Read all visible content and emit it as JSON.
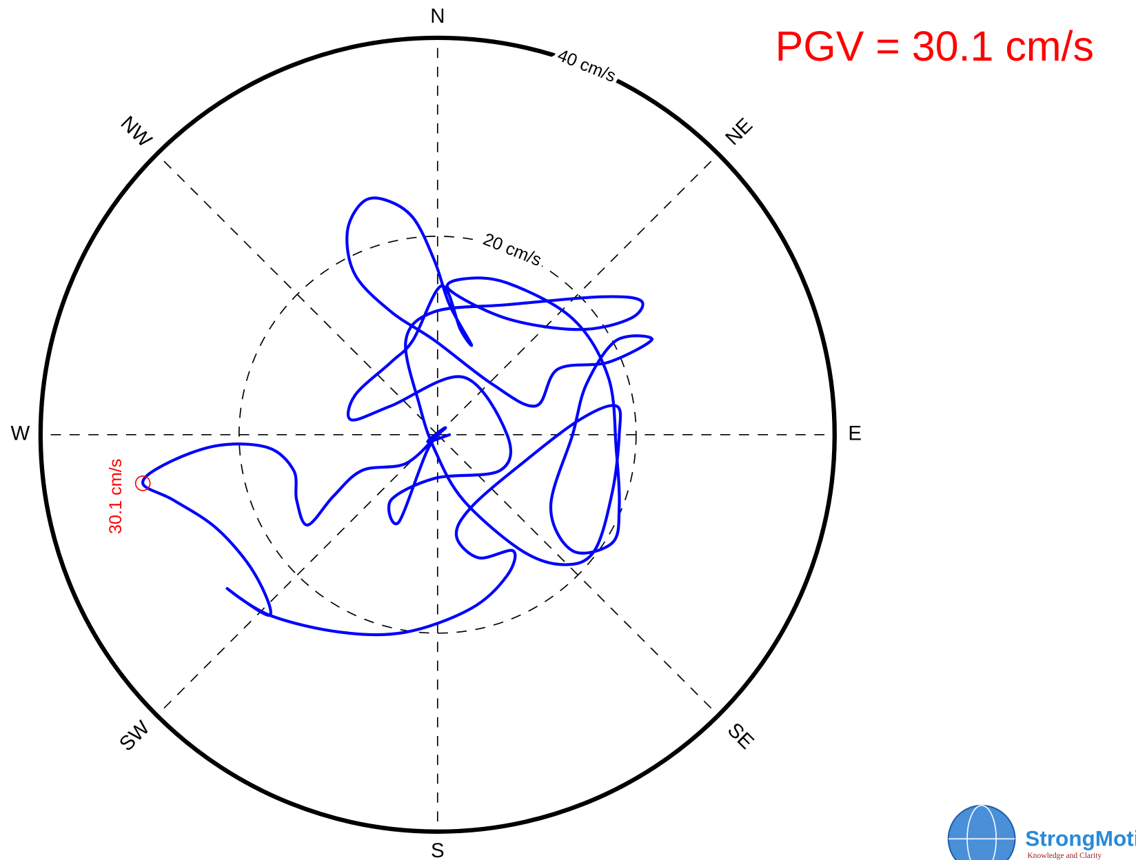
{
  "chart_data": {
    "type": "particle_motion",
    "annotation": "PGV = 30.1 cm/s",
    "directions": [
      "N",
      "NE",
      "E",
      "SE",
      "S",
      "SW",
      "W",
      "NW"
    ],
    "rlim": [
      0,
      40
    ],
    "rticks": [
      {
        "value": 20,
        "label": "20 cm/s"
      },
      {
        "value": 40,
        "label": "40 cm/s"
      }
    ],
    "color": "#0000ff",
    "x": [
      0,
      -3.2,
      -7.6,
      -10.5,
      -13.1,
      -14.2,
      -14.5,
      -17.1,
      -22.2,
      -27.3,
      -29.7,
      -26.6,
      -22.2,
      -18.5,
      -16.9,
      -21.2,
      -16.9,
      -9.8,
      -3.2,
      3.4,
      7.0,
      7.6,
      4.1,
      1.9,
      3.4,
      8.5,
      14.3,
      18.0,
      18.3,
      17.6,
      15.8,
      12.8,
      8.5,
      2.6,
      -0.3,
      -1.8,
      -3.2,
      -0.3,
      7.0,
      16.5,
      20.5,
      19.4,
      14.3,
      7.0,
      1.2,
      2.6,
      7.0,
      13.6,
      17.2,
      18.0,
      18.3,
      17.6,
      13.6,
      11.4,
      13.6,
      15.0,
      18.0,
      21.6,
      17.2,
      12.1,
      9.9,
      5.5,
      -0.3,
      -4.7,
      -8.3,
      -9.1,
      -7.6,
      -5.4,
      -2.5,
      -0.3,
      1.2,
      3.4,
      2.3,
      0.4,
      -2.5,
      -4.7,
      -8.3,
      -8.7,
      -4.7,
      2.6,
      7.0,
      6.3,
      -0.3,
      -4.7,
      -3.9,
      -1.0,
      0.8,
      -1.0,
      1.2
    ],
    "values": [
      0,
      -2.9,
      -3.6,
      -6.2,
      -9.1,
      -6.6,
      -3.6,
      -1.3,
      -1.1,
      -2.9,
      -4.9,
      -6.6,
      -9.5,
      -13.9,
      -18.2,
      -15.5,
      -18.2,
      -19.9,
      -19.9,
      -17.5,
      -14.2,
      -11.7,
      -12.4,
      -10.2,
      -7.3,
      -2.9,
      1.5,
      2.9,
      0,
      -5.8,
      -11.7,
      -13.1,
      -11.7,
      -6.6,
      -1.5,
      2.9,
      9.5,
      12.4,
      13.1,
      13.9,
      13.5,
      11.7,
      10.6,
      11.7,
      14.6,
      15.7,
      15.3,
      11.7,
      5.8,
      -1.5,
      -7.3,
      -10.9,
      -11.7,
      -7.3,
      0,
      5.1,
      9.5,
      9.6,
      7.3,
      6.6,
      2.9,
      5.1,
      9.5,
      12.4,
      16.1,
      20.4,
      23.4,
      23.7,
      21.9,
      17.5,
      13.1,
      9.1,
      10.6,
      15.0,
      9.5,
      7.3,
      4.0,
      1.5,
      2.9,
      5.8,
      0,
      -3.6,
      -4.4,
      -6.6,
      -8.8,
      -1.5,
      0.7,
      -0.7,
      0
    ],
    "pgv_point": {
      "x": -29.7,
      "y": -4.9,
      "label": "30.1 cm/s",
      "color": "#ff0000"
    },
    "logo": {
      "title": "StrongMotion",
      "tagline": "Knowledge and Clarity"
    }
  }
}
